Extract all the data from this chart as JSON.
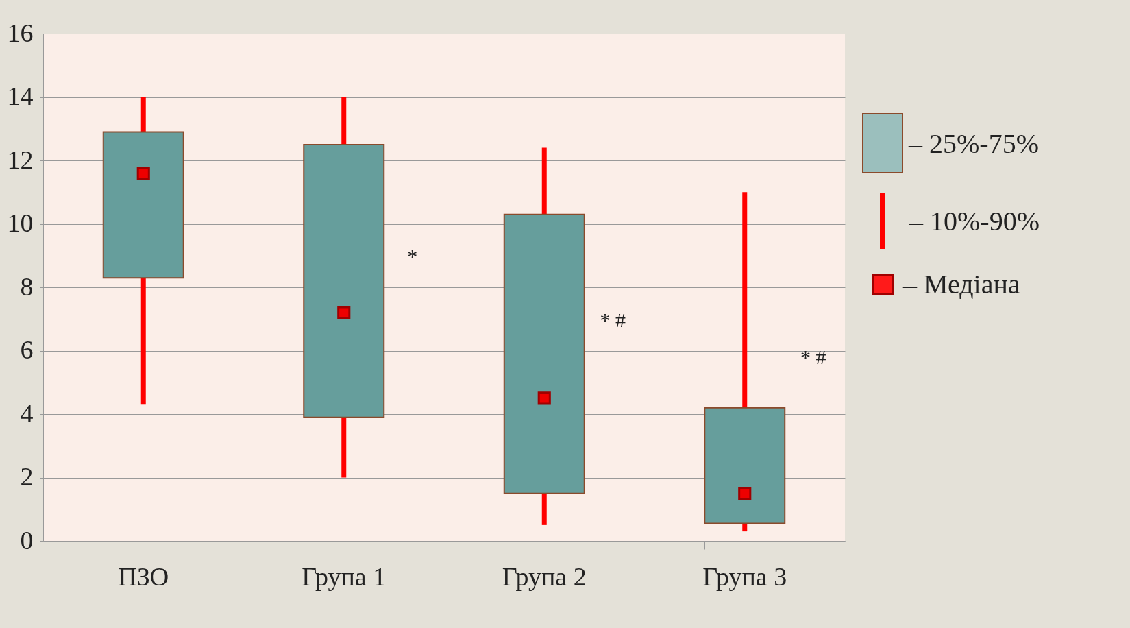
{
  "chart_data": {
    "type": "box",
    "categories": [
      "ПЗО",
      "Група 1",
      "Група 2",
      "Група 3"
    ],
    "boxes": [
      {
        "low": 4.3,
        "q1": 8.3,
        "median": 11.6,
        "q3": 12.9,
        "high": 14
      },
      {
        "low": 2.0,
        "q1": 3.9,
        "median": 7.2,
        "q3": 12.5,
        "high": 14
      },
      {
        "low": 0.5,
        "q1": 1.5,
        "median": 4.5,
        "q3": 10.3,
        "high": 12.4
      },
      {
        "low": 0.3,
        "q1": 0.55,
        "median": 1.5,
        "q3": 4.2,
        "high": 11.0
      }
    ],
    "color": "#669e9c",
    "ylim": [
      0,
      16
    ],
    "yticks": [
      0,
      2,
      4,
      6,
      8,
      10,
      12,
      14,
      16
    ],
    "grid": "y",
    "annotations": [
      "*",
      "* #",
      "* #",
      "– 25%-75%",
      "– 10%-90%",
      "– Медіана"
    ]
  }
}
